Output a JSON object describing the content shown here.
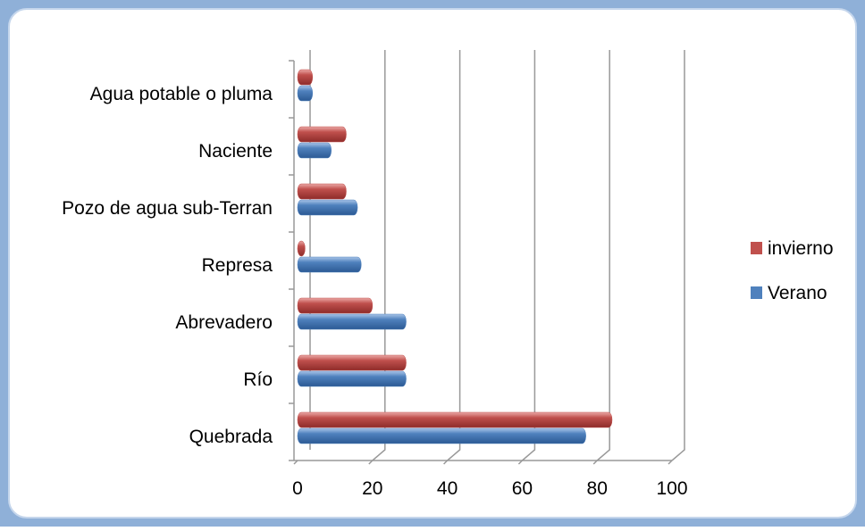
{
  "chart_data": {
    "type": "bar",
    "orientation": "horizontal",
    "categories": [
      "Quebrada",
      "Río",
      "Abrevadero",
      "Represa",
      "Pozo de agua sub-Terran",
      "Naciente",
      "Agua potable o pluma"
    ],
    "series": [
      {
        "name": "Verano",
        "color": "#4f81bd",
        "values": [
          77,
          29,
          29,
          17,
          16,
          9,
          4
        ]
      },
      {
        "name": "invierno",
        "color": "#c0504d",
        "values": [
          84,
          29,
          20,
          2,
          13,
          13,
          4
        ]
      }
    ],
    "xlim": [
      0,
      100
    ],
    "xticks": [
      0,
      20,
      40,
      60,
      80,
      100
    ],
    "grid": true,
    "legend": "right"
  }
}
